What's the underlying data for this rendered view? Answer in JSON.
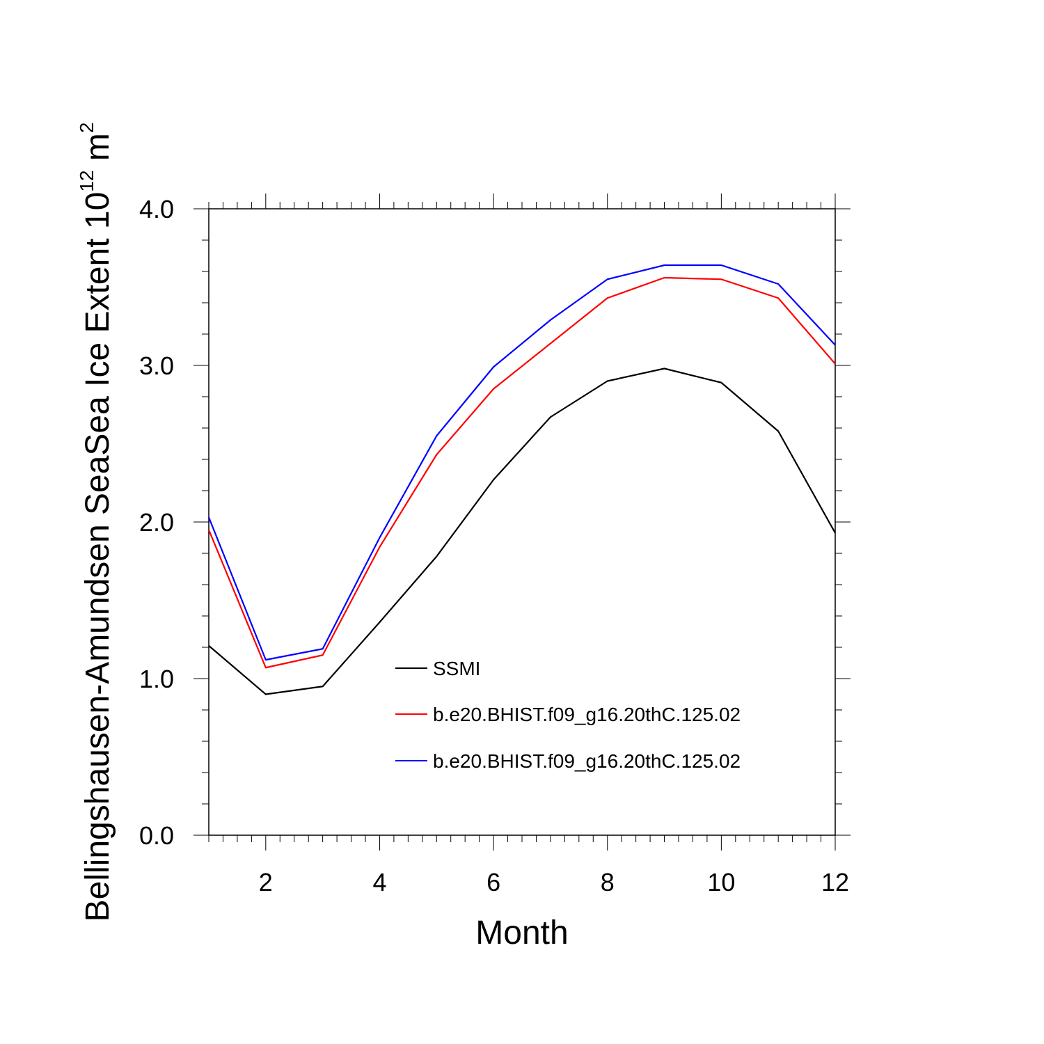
{
  "chart_data": {
    "type": "line",
    "x": [
      1,
      2,
      3,
      4,
      5,
      6,
      7,
      8,
      9,
      10,
      11,
      12
    ],
    "series": [
      {
        "name": "SSMI",
        "color": "#000000",
        "values": [
          1.21,
          0.9,
          0.95,
          1.36,
          1.78,
          2.27,
          2.67,
          2.9,
          2.98,
          2.89,
          2.58,
          1.93
        ]
      },
      {
        "name": "b.e20.BHIST.f09_g16.20thC.125.02",
        "color": "#ff0000",
        "values": [
          1.95,
          1.07,
          1.15,
          1.84,
          2.43,
          2.85,
          3.14,
          3.43,
          3.56,
          3.55,
          3.43,
          3.01
        ]
      },
      {
        "name": "b.e20.BHIST.f09_g16.20thC.125.02",
        "color": "#0000ff",
        "values": [
          2.03,
          1.12,
          1.19,
          1.9,
          2.55,
          2.99,
          3.29,
          3.55,
          3.64,
          3.64,
          3.52,
          3.13
        ]
      }
    ],
    "title": "",
    "xlabel": "Month",
    "ylabel": "Bellingshausen-Amundsen SeaSea Ice Extent 10",
    "ylabel_superscript": "12",
    "ylabel_unit": " m",
    "ylabel_unit_superscript": "2",
    "xlim": [
      1,
      12
    ],
    "ylim": [
      0,
      4
    ],
    "xticks": [
      2,
      4,
      6,
      8,
      10,
      12
    ],
    "xtick_labels": [
      "2",
      "4",
      "6",
      "8",
      "10",
      "12"
    ],
    "yticks": [
      0,
      1,
      2,
      3,
      4
    ],
    "ytick_labels": [
      "0.0",
      "1.0",
      "2.0",
      "3.0",
      "4.0"
    ],
    "grid": false,
    "legend_position": "center-right inside plot"
  }
}
